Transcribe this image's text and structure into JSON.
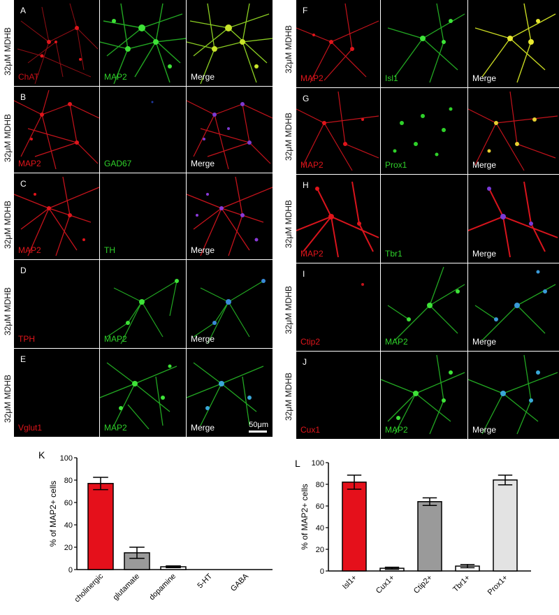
{
  "condition_label": "32μM MDHB",
  "scalebar_label": "50μm",
  "colors": {
    "red_channel": "#e0151b",
    "green_channel": "#2fd12a",
    "bar_red": "#e5101b",
    "bar_gray": "#9a9a9a",
    "bar_white": "#ffffff",
    "bar_lightgray": "#e3e3e3"
  },
  "left_rows": [
    {
      "letter": "A",
      "labels": [
        "ChAT",
        "MAP2",
        "Merge"
      ],
      "label_colors": [
        "red",
        "green",
        "white"
      ]
    },
    {
      "letter": "B",
      "labels": [
        "MAP2",
        "GAD67",
        "Merge"
      ],
      "label_colors": [
        "red",
        "green",
        "white"
      ]
    },
    {
      "letter": "C",
      "labels": [
        "MAP2",
        "TH",
        "Merge"
      ],
      "label_colors": [
        "red",
        "green",
        "white"
      ]
    },
    {
      "letter": "D",
      "labels": [
        "TPH",
        "MAP2",
        "Merge"
      ],
      "label_colors": [
        "red",
        "green",
        "white"
      ]
    },
    {
      "letter": "E",
      "labels": [
        "Vglut1",
        "MAP2",
        "Merge"
      ],
      "label_colors": [
        "red",
        "green",
        "white"
      ]
    }
  ],
  "right_rows": [
    {
      "letter": "F",
      "labels": [
        "MAP2",
        "Isl1",
        "Merge"
      ],
      "label_colors": [
        "red",
        "green",
        "white"
      ]
    },
    {
      "letter": "G",
      "labels": [
        "MAP2",
        "Prox1",
        "Merge"
      ],
      "label_colors": [
        "red",
        "green",
        "white"
      ]
    },
    {
      "letter": "H",
      "labels": [
        "MAP2",
        "Tbr1",
        "Merge"
      ],
      "label_colors": [
        "red",
        "green",
        "white"
      ]
    },
    {
      "letter": "I",
      "labels": [
        "Ctip2",
        "MAP2",
        "Merge"
      ],
      "label_colors": [
        "red",
        "green",
        "white"
      ]
    },
    {
      "letter": "J",
      "labels": [
        "Cux1",
        "MAP2",
        "Merge"
      ],
      "label_colors": [
        "red",
        "green",
        "white"
      ]
    }
  ],
  "chart_data": [
    {
      "panel": "K",
      "type": "bar",
      "categories": [
        "cholinergic",
        "glutamate",
        "dopamine",
        "5-HT",
        "GABA"
      ],
      "values": [
        77,
        15,
        2.5,
        0,
        0
      ],
      "errors": [
        5.5,
        5,
        0.8,
        0,
        0
      ],
      "bar_colors": [
        "#e5101b",
        "#9a9a9a",
        "#ffffff",
        "#ffffff",
        "#ffffff"
      ],
      "ylabel": "% of MAP2+ cells",
      "ylim": [
        0,
        100
      ],
      "yticks": [
        0,
        20,
        40,
        60,
        80,
        100
      ]
    },
    {
      "panel": "L",
      "type": "bar",
      "categories": [
        "Isl1+",
        "Cux1+",
        "Ctip2+",
        "Tbr1+",
        "Prox1+"
      ],
      "values": [
        82,
        2.5,
        64,
        4.5,
        84
      ],
      "errors": [
        6.5,
        1,
        3.5,
        1.5,
        4.5
      ],
      "bar_colors": [
        "#e5101b",
        "#ffffff",
        "#9a9a9a",
        "#ffffff",
        "#e3e3e3"
      ],
      "ylabel": "% of MAP2+ cells",
      "ylim": [
        0,
        100
      ],
      "yticks": [
        0,
        20,
        40,
        60,
        80,
        100
      ]
    }
  ]
}
